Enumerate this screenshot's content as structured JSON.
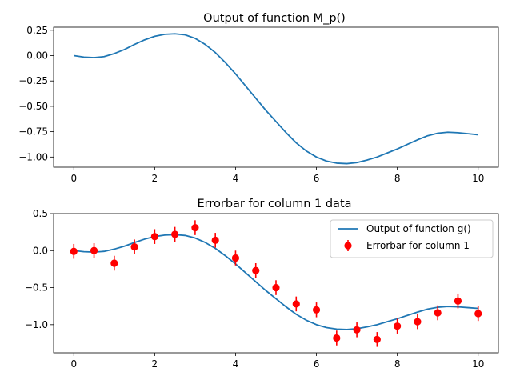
{
  "chart_data": [
    {
      "type": "line",
      "title": "Output of function M_p()",
      "xlabel": "",
      "ylabel": "",
      "xlim": [
        -0.5,
        10.5
      ],
      "ylim": [
        -1.1,
        0.28
      ],
      "xticks": [
        0,
        2,
        4,
        6,
        8,
        10
      ],
      "yticks": [
        0.25,
        0.0,
        -0.25,
        -0.5,
        -0.75,
        -1.0
      ],
      "ytick_labels": [
        "0.25",
        "0.00",
        "−0.25",
        "−0.50",
        "−0.75",
        "−1.00"
      ],
      "xtick_labels": [
        "0",
        "2",
        "4",
        "6",
        "8",
        "10"
      ],
      "line_color": "#1f77b4",
      "series": [
        {
          "x": [
            0,
            0.25,
            0.5,
            0.75,
            1.0,
            1.25,
            1.5,
            1.75,
            2.0,
            2.25,
            2.5,
            2.75,
            3.0,
            3.25,
            3.5,
            3.75,
            4.0,
            4.25,
            4.5,
            4.75,
            5.0,
            5.25,
            5.5,
            5.75,
            6.0,
            6.25,
            6.5,
            6.75,
            7.0,
            7.25,
            7.5,
            7.75,
            8.0,
            8.25,
            8.5,
            8.75,
            9.0,
            9.25,
            9.5,
            9.75,
            10.0
          ],
          "y": [
            0.0,
            -0.015,
            -0.02,
            -0.01,
            0.02,
            0.06,
            0.11,
            0.155,
            0.19,
            0.21,
            0.215,
            0.205,
            0.17,
            0.11,
            0.03,
            -0.07,
            -0.18,
            -0.3,
            -0.42,
            -0.54,
            -0.65,
            -0.76,
            -0.86,
            -0.94,
            -1.0,
            -1.04,
            -1.06,
            -1.065,
            -1.055,
            -1.03,
            -1.0,
            -0.96,
            -0.92,
            -0.875,
            -0.83,
            -0.79,
            -0.765,
            -0.755,
            -0.76,
            -0.77,
            -0.78
          ]
        }
      ]
    },
    {
      "type": "line",
      "title": "Errorbar for column 1 data",
      "xlabel": "",
      "ylabel": "",
      "xlim": [
        -0.5,
        10.5
      ],
      "ylim": [
        -1.38,
        0.5
      ],
      "xticks": [
        0,
        2,
        4,
        6,
        8,
        10
      ],
      "yticks": [
        0.5,
        0.0,
        -0.5,
        -1.0
      ],
      "ytick_labels": [
        "0.5",
        "0.0",
        "−0.5",
        "−1.0"
      ],
      "xtick_labels": [
        "0",
        "2",
        "4",
        "6",
        "8",
        "10"
      ],
      "legend_position": "top-right",
      "line_color": "#1f77b4",
      "marker_color": "#ff0000",
      "series": [
        {
          "name": "Output of function g()",
          "x": [
            0,
            0.25,
            0.5,
            0.75,
            1.0,
            1.25,
            1.5,
            1.75,
            2.0,
            2.25,
            2.5,
            2.75,
            3.0,
            3.25,
            3.5,
            3.75,
            4.0,
            4.25,
            4.5,
            4.75,
            5.0,
            5.25,
            5.5,
            5.75,
            6.0,
            6.25,
            6.5,
            6.75,
            7.0,
            7.25,
            7.5,
            7.75,
            8.0,
            8.25,
            8.5,
            8.75,
            9.0,
            9.25,
            9.5,
            9.75,
            10.0
          ],
          "y": [
            0.0,
            -0.015,
            -0.02,
            -0.01,
            0.02,
            0.06,
            0.11,
            0.155,
            0.19,
            0.21,
            0.215,
            0.205,
            0.17,
            0.11,
            0.03,
            -0.07,
            -0.18,
            -0.3,
            -0.42,
            -0.54,
            -0.65,
            -0.76,
            -0.86,
            -0.94,
            -1.0,
            -1.04,
            -1.06,
            -1.065,
            -1.055,
            -1.03,
            -1.0,
            -0.96,
            -0.92,
            -0.875,
            -0.83,
            -0.79,
            -0.765,
            -0.755,
            -0.76,
            -0.77,
            -0.78
          ]
        },
        {
          "name": "Errorbar for column 1",
          "x": [
            0,
            0.5,
            1.0,
            1.5,
            2.0,
            2.5,
            3.0,
            3.5,
            4.0,
            4.5,
            5.0,
            5.5,
            6.0,
            6.5,
            7.0,
            7.5,
            8.0,
            8.5,
            9.0,
            9.5,
            10.0
          ],
          "y": [
            -0.01,
            0.0,
            -0.17,
            0.05,
            0.19,
            0.22,
            0.31,
            0.14,
            -0.1,
            -0.27,
            -0.5,
            -0.72,
            -0.8,
            -1.18,
            -1.07,
            -1.2,
            -1.02,
            -0.96,
            -0.84,
            -0.68,
            -0.85
          ],
          "yerr": 0.1
        }
      ]
    }
  ]
}
